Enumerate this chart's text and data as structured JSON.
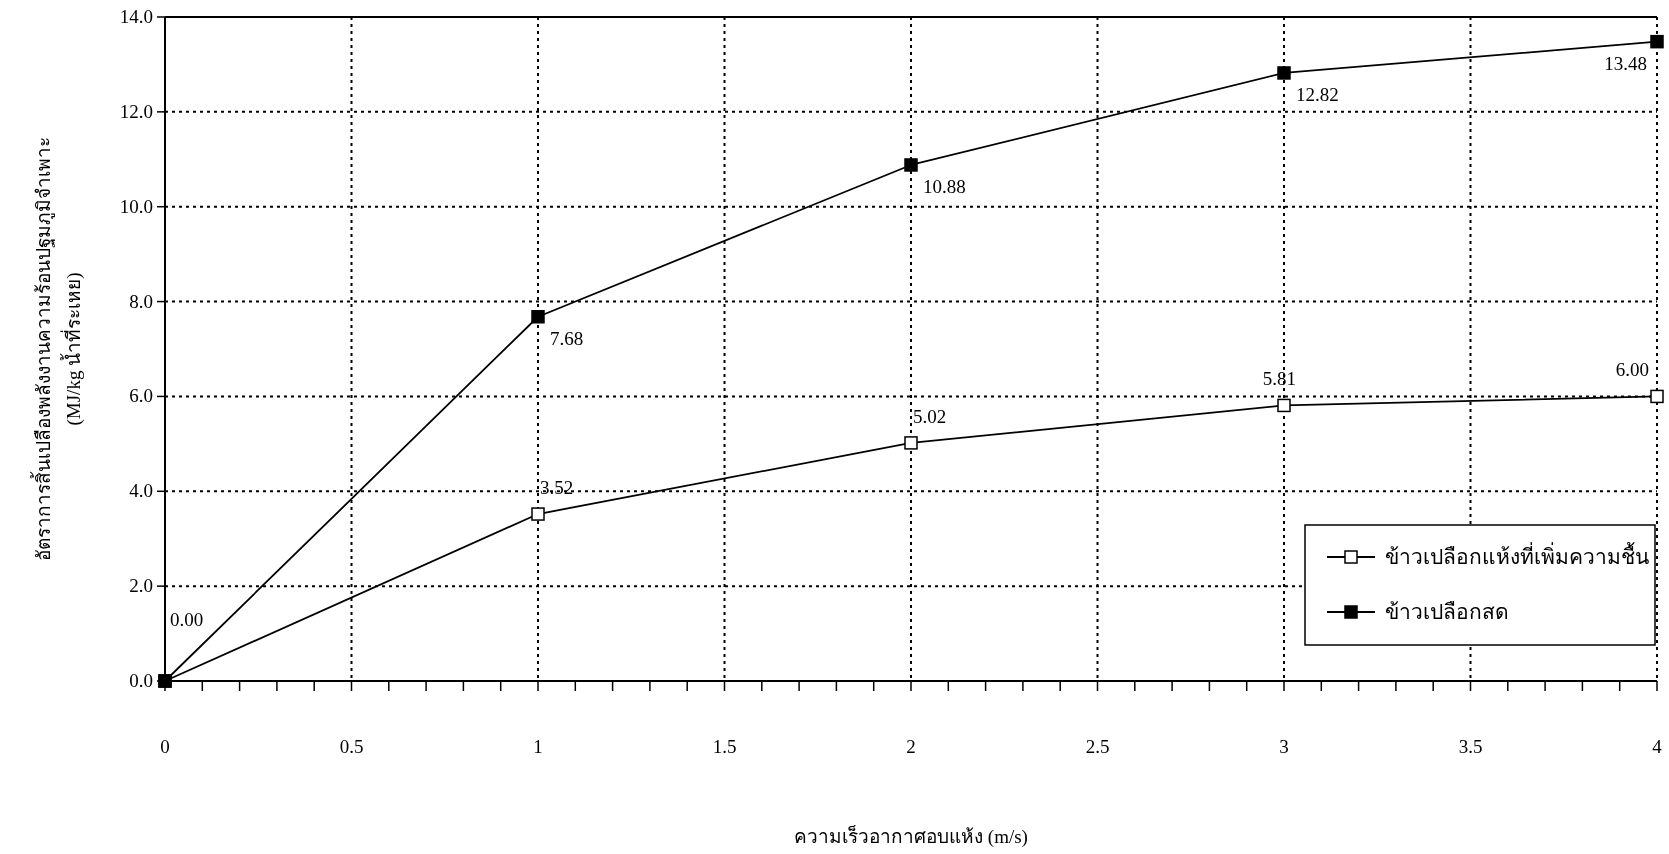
{
  "chart_data": {
    "type": "line",
    "xlabel": "ความเร็วอากาศอบแห้ง (m/s)",
    "ylabel": "อัตราการสิ้นเปลืองพลังงานความร้อนปฐมภูมิจำเพาะ\n(MJ/kg น้ำที่ระเหย)",
    "x": [
      0,
      1,
      2,
      3,
      4
    ],
    "series": [
      {
        "name": "ข้าวเปลือกแห้งที่เพิ่มความชื้น",
        "color": "#000000",
        "colors": [
          "#ffffff",
          "#ffffff",
          "#ffffff",
          "#ffffff",
          "#ffffff"
        ],
        "values": [
          0,
          3.52,
          5.02,
          5.81,
          6.0
        ],
        "value_labels": [
          "0.00",
          "3.52",
          "5.02",
          "5.81",
          "6.00"
        ]
      },
      {
        "name": "ข้าวเปลือกสด",
        "color": "#000000",
        "colors": [
          "#000000",
          "#000000",
          "#000000",
          "#000000",
          "#000000"
        ],
        "values": [
          0,
          7.68,
          10.88,
          12.82,
          13.48
        ],
        "value_labels": [
          null,
          "7.68",
          "10.88",
          "12.82",
          "13.48"
        ]
      }
    ],
    "marker": "square",
    "line_style": "solid",
    "grid": true,
    "legend": "bottom right",
    "xlim": [
      0,
      4
    ],
    "xticks": [
      0,
      {
        "value": 0.1,
        "label": null
      },
      {
        "value": 0.2,
        "label": null
      },
      {
        "value": 0.3,
        "label": null
      },
      {
        "value": 0.4,
        "label": null
      },
      0.5,
      {
        "value": 0.6,
        "label": null
      },
      {
        "value": 0.7,
        "label": null
      },
      {
        "value": 0.8,
        "label": null
      },
      {
        "value": 0.9,
        "label": null
      },
      1,
      {
        "value": 1.1,
        "label": null
      },
      {
        "value": 1.2,
        "label": null
      },
      {
        "value": 1.3,
        "label": null
      },
      {
        "value": 1.4,
        "label": null
      },
      1.5,
      {
        "value": 1.6,
        "label": null
      },
      {
        "value": 1.7,
        "label": null
      },
      {
        "value": 1.8,
        "label": null
      },
      {
        "value": 1.9,
        "label": null
      },
      2,
      {
        "value": 2.1,
        "label": null
      },
      {
        "value": 2.2,
        "label": null
      },
      {
        "value": 2.3,
        "label": null
      },
      {
        "value": 2.4,
        "label": null
      },
      2.5,
      {
        "value": 2.6,
        "label": null
      },
      {
        "value": 2.7,
        "label": null
      },
      {
        "value": 2.8,
        "label": null
      },
      {
        "value": 2.9,
        "label": null
      },
      3,
      {
        "value": 3.1,
        "label": null
      },
      {
        "value": 3.2,
        "label": null
      },
      {
        "value": 3.3,
        "label": null
      },
      {
        "value": 3.4,
        "label": null
      },
      3.5,
      {
        "value": 3.6,
        "label": null
      },
      {
        "value": 3.7,
        "label": null
      },
      {
        "value": 3.8,
        "label": null
      },
      {
        "value": 3.9,
        "label": null
      },
      4
    ],
    "ylim": [
      0,
      14
    ],
    "yticks": [
      {
        "value": 0,
        "label": "0.0"
      },
      {
        "value": 2,
        "label": "2.0"
      },
      {
        "value": 4,
        "label": "4.0"
      },
      {
        "value": 6,
        "label": "6.0"
      },
      {
        "value": 8,
        "label": "8.0"
      },
      {
        "value": 10,
        "label": "10.0"
      },
      {
        "value": 12,
        "label": "12.0"
      },
      {
        "value": 14,
        "label": "14.0"
      }
    ]
  }
}
